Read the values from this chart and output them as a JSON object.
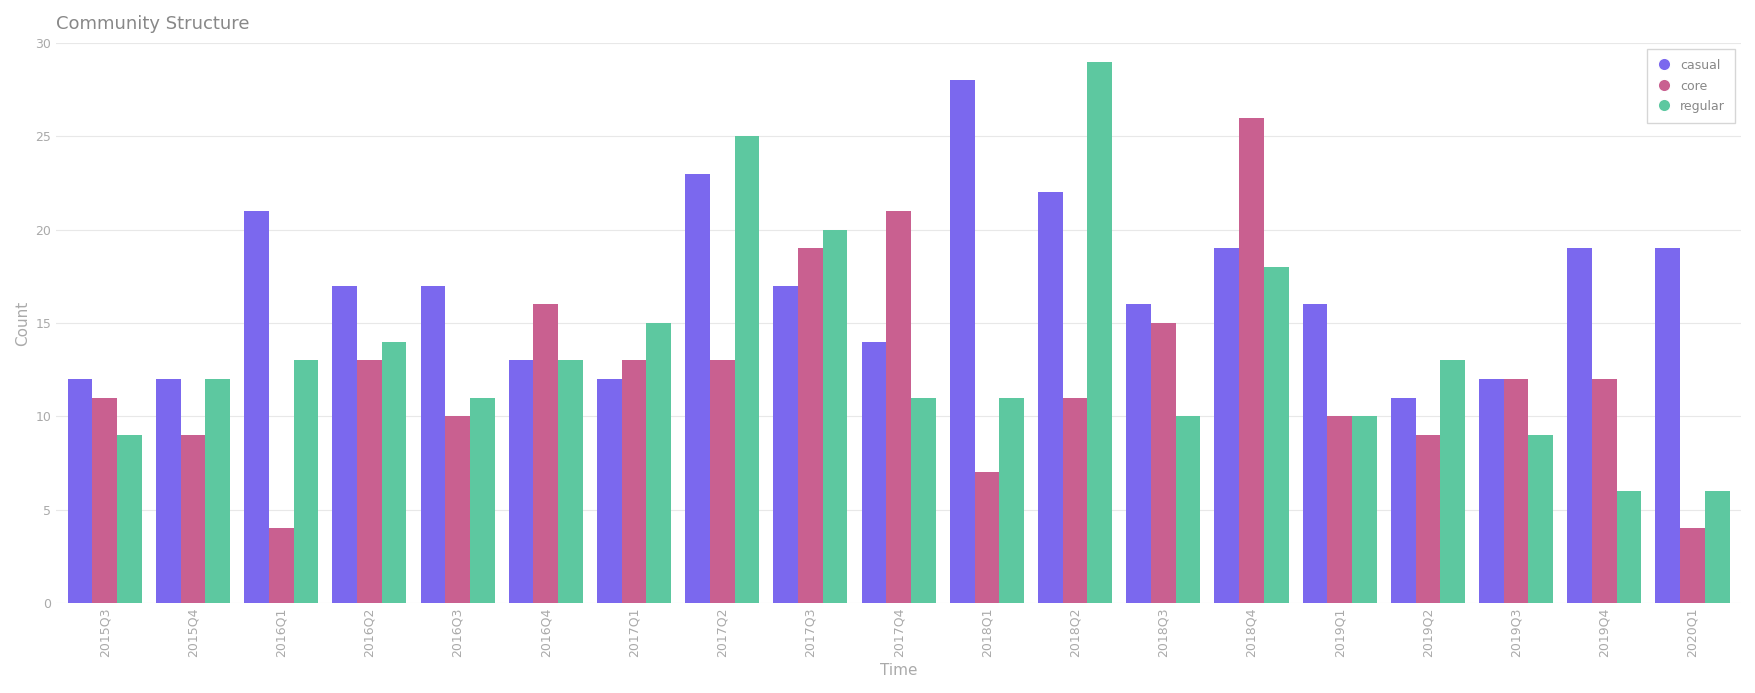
{
  "title": "Community Structure",
  "xlabel": "Time",
  "ylabel": "Count",
  "categories": [
    "2015Q3",
    "2015Q4",
    "2016Q1",
    "2016Q2",
    "2016Q3",
    "2016Q4",
    "2017Q1",
    "2017Q2",
    "2017Q3",
    "2017Q4",
    "2018Q1",
    "2018Q2",
    "2018Q3",
    "2018Q4",
    "2019Q1",
    "2019Q2",
    "2019Q3",
    "2019Q4",
    "2020Q1"
  ],
  "casual": [
    12,
    12,
    21,
    17,
    17,
    13,
    12,
    23,
    17,
    14,
    28,
    22,
    16,
    19,
    16,
    11,
    12,
    19,
    19
  ],
  "core": [
    11,
    9,
    4,
    13,
    10,
    16,
    13,
    13,
    19,
    21,
    7,
    11,
    15,
    26,
    10,
    9,
    12,
    12,
    4
  ],
  "regular": [
    9,
    12,
    13,
    14,
    11,
    13,
    15,
    25,
    20,
    11,
    11,
    29,
    10,
    18,
    10,
    13,
    9,
    6,
    6
  ],
  "casual_color": "#7B68EE",
  "core_color": "#C96090",
  "regular_color": "#5DC8A0",
  "background_color": "#ffffff",
  "title_fontsize": 13,
  "axis_label_fontsize": 11,
  "tick_fontsize": 9,
  "tick_color": "#aaaaaa",
  "ylim": [
    0,
    30
  ],
  "yticks": [
    0,
    5,
    10,
    15,
    20,
    25,
    30
  ]
}
